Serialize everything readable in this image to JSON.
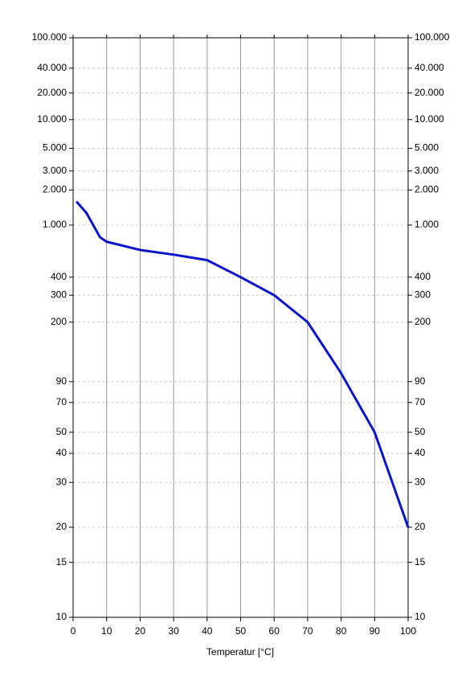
{
  "chart_data": {
    "type": "line",
    "x_label": "Temperatur [°C]",
    "y_scale": "walther",
    "x": [
      1,
      4,
      6,
      8,
      10,
      20,
      30,
      40,
      50,
      60,
      70,
      80,
      90,
      100
    ],
    "series": [
      {
        "color": "#0a14c8",
        "values": [
          1580,
          1260,
          1000,
          800,
          735,
          635,
          585,
          532,
          400,
          300,
          200,
          100,
          50,
          20
        ]
      }
    ],
    "xlim": [
      0,
      100
    ],
    "xticks": [
      0,
      10,
      20,
      30,
      40,
      50,
      60,
      70,
      80,
      90,
      100
    ],
    "ylim": [
      10,
      100000
    ],
    "yticks": [
      10,
      15,
      20,
      30,
      40,
      50,
      70,
      90,
      200,
      300,
      400,
      {
        "value": 1000,
        "label": "1.000"
      },
      {
        "value": 2000,
        "label": "2.000"
      },
      {
        "value": 3000,
        "label": "3.000"
      },
      {
        "value": 5000,
        "label": "5.000"
      },
      {
        "value": 10000,
        "label": "10.000"
      },
      {
        "value": 20000,
        "label": "20.000"
      },
      {
        "value": 40000,
        "label": "40.000"
      },
      {
        "value": 100000,
        "label": "100.000"
      }
    ],
    "grid": true
  }
}
